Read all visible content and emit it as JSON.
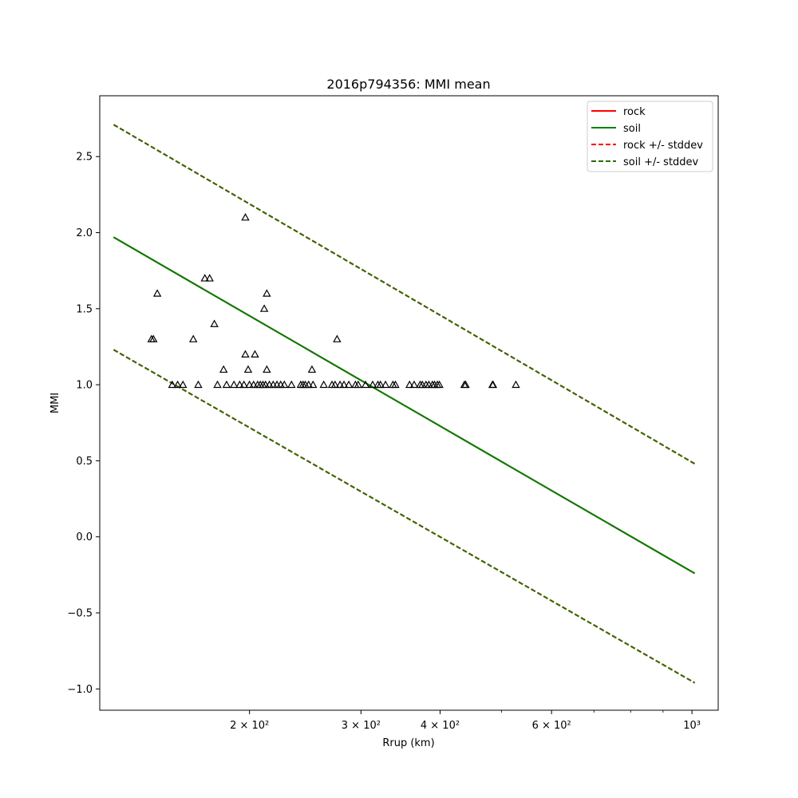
{
  "chart_data": {
    "type": "scatter",
    "title": "2016p794356: MMI mean",
    "xlabel": "Rrup (km)",
    "ylabel": "MMI",
    "xscale": "log",
    "xlim": [
      116,
      1100
    ],
    "ylim": [
      -1.14,
      2.9
    ],
    "grid": false,
    "legend_position": "top-right",
    "x_ticks": [
      {
        "value": 200,
        "label": "2 × 10²"
      },
      {
        "value": 300,
        "label": "3 × 10²"
      },
      {
        "value": 400,
        "label": "4 × 10²"
      },
      {
        "value": 600,
        "label": "6 × 10²"
      },
      {
        "value": 1000,
        "label": "10³"
      }
    ],
    "x_minor_ticks": [
      500,
      700,
      800,
      900
    ],
    "y_ticks": [
      {
        "value": -1.0,
        "label": "−1.0"
      },
      {
        "value": -0.5,
        "label": "−0.5"
      },
      {
        "value": 0.0,
        "label": "0.0"
      },
      {
        "value": 0.5,
        "label": "0.5"
      },
      {
        "value": 1.0,
        "label": "1.0"
      },
      {
        "value": 1.5,
        "label": "1.5"
      },
      {
        "value": 2.0,
        "label": "2.0"
      },
      {
        "value": 2.5,
        "label": "2.5"
      }
    ],
    "lines": [
      {
        "name": "rock",
        "color": "#ff0000",
        "style": "solid",
        "x": [
          122,
          1010
        ],
        "y": [
          1.97,
          -0.24
        ]
      },
      {
        "name": "soil",
        "color": "#008000",
        "style": "solid",
        "x": [
          122,
          1010
        ],
        "y": [
          1.97,
          -0.24
        ]
      },
      {
        "name": "rock +/- stddev",
        "color": "#ff0000",
        "style": "dashed",
        "x": [
          122,
          1010
        ],
        "y": [
          2.71,
          0.48
        ]
      },
      {
        "name": "rock +/- stddev",
        "color": "#ff0000",
        "style": "dashed",
        "x": [
          122,
          1010
        ],
        "y": [
          1.23,
          -0.96
        ],
        "legend": false
      },
      {
        "name": "soil +/- stddev",
        "color": "#2e6b00",
        "style": "dashed",
        "x": [
          122,
          1010
        ],
        "y": [
          2.71,
          0.48
        ]
      },
      {
        "name": "soil +/- stddev",
        "color": "#2e6b00",
        "style": "dashed",
        "x": [
          122,
          1010
        ],
        "y": [
          1.23,
          -0.96
        ],
        "legend": false
      }
    ],
    "scatter": {
      "marker": "triangle",
      "color": "#000000",
      "points": [
        [
          141,
          1.3
        ],
        [
          140,
          1.3
        ],
        [
          143,
          1.6
        ],
        [
          151,
          1.0
        ],
        [
          154,
          1.0
        ],
        [
          157,
          1.0
        ],
        [
          163,
          1.3
        ],
        [
          166,
          1.0
        ],
        [
          170,
          1.7
        ],
        [
          173,
          1.7
        ],
        [
          176,
          1.4
        ],
        [
          178,
          1.0
        ],
        [
          182,
          1.1
        ],
        [
          184,
          1.0
        ],
        [
          189,
          1.0
        ],
        [
          193,
          1.0
        ],
        [
          196,
          1.0
        ],
        [
          197,
          2.1
        ],
        [
          197,
          1.2
        ],
        [
          199,
          1.1
        ],
        [
          200,
          1.0
        ],
        [
          203,
          1.0
        ],
        [
          204,
          1.2
        ],
        [
          206,
          1.0
        ],
        [
          208,
          1.0
        ],
        [
          210,
          1.0
        ],
        [
          211,
          1.5
        ],
        [
          212,
          1.0
        ],
        [
          213,
          1.6
        ],
        [
          213,
          1.1
        ],
        [
          215,
          1.0
        ],
        [
          218,
          1.0
        ],
        [
          221,
          1.0
        ],
        [
          224,
          1.0
        ],
        [
          227,
          1.0
        ],
        [
          233,
          1.0
        ],
        [
          241,
          1.0
        ],
        [
          243,
          1.0
        ],
        [
          245,
          1.0
        ],
        [
          248,
          1.0
        ],
        [
          251,
          1.1
        ],
        [
          252,
          1.0
        ],
        [
          262,
          1.0
        ],
        [
          270,
          1.0
        ],
        [
          273,
          1.0
        ],
        [
          275,
          1.3
        ],
        [
          278,
          1.0
        ],
        [
          282,
          1.0
        ],
        [
          287,
          1.0
        ],
        [
          294,
          1.0
        ],
        [
          297,
          1.0
        ],
        [
          305,
          1.0
        ],
        [
          313,
          1.0
        ],
        [
          319,
          1.0
        ],
        [
          322,
          1.0
        ],
        [
          328,
          1.0
        ],
        [
          337,
          1.0
        ],
        [
          340,
          1.0
        ],
        [
          358,
          1.0
        ],
        [
          364,
          1.0
        ],
        [
          372,
          1.0
        ],
        [
          375,
          1.0
        ],
        [
          380,
          1.0
        ],
        [
          384,
          1.0
        ],
        [
          389,
          1.0
        ],
        [
          392,
          1.0
        ],
        [
          396,
          1.0
        ],
        [
          399,
          1.0
        ],
        [
          437,
          1.0
        ],
        [
          439,
          1.0
        ],
        [
          484,
          1.0
        ],
        [
          485,
          1.0
        ],
        [
          527,
          1.0
        ]
      ]
    }
  }
}
